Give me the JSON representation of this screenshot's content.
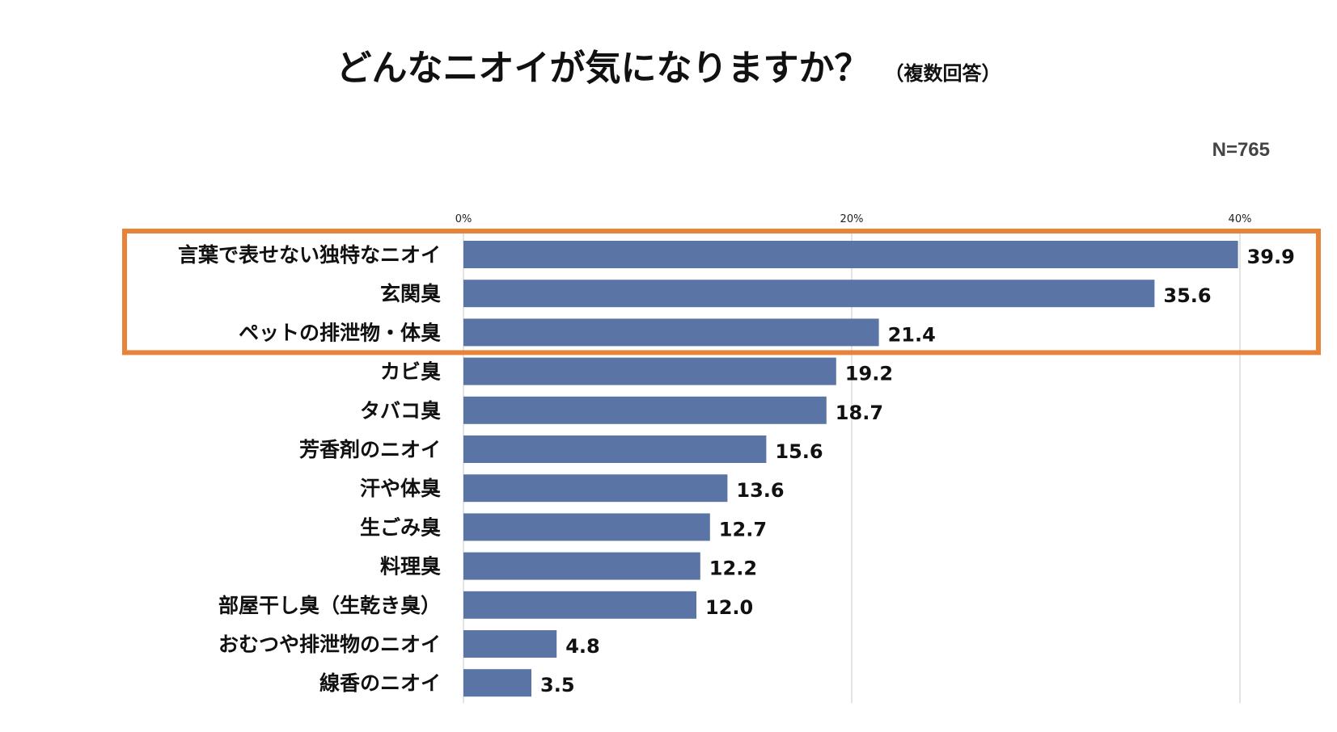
{
  "header": {
    "title": "どんなニオイが気になりますか？",
    "subtitle": "（複数回答）",
    "sample_size": "N=765"
  },
  "colors": {
    "bar": "#5b74a6",
    "highlight_border": "#e8843a",
    "grid": "#c8c8c8"
  },
  "chart_data": {
    "type": "bar",
    "orientation": "horizontal",
    "title": "どんなニオイが気になりますか？",
    "subtitle": "（複数回答）",
    "note": "N=765",
    "categories": [
      "言葉で表せない独特なニオイ",
      "玄関臭",
      "ペットの排泄物・体臭",
      "カビ臭",
      "タバコ臭",
      "芳香剤のニオイ",
      "汗や体臭",
      "生ごみ臭",
      "料理臭",
      "部屋干し臭（生乾き臭）",
      "おむつや排泄物のニオイ",
      "線香のニオイ"
    ],
    "values": [
      39.9,
      35.6,
      21.4,
      19.2,
      18.7,
      15.6,
      13.6,
      12.7,
      12.2,
      12.0,
      4.8,
      3.5
    ],
    "value_labels": [
      "39.9",
      "35.6",
      "21.4",
      "19.2",
      "18.7",
      "15.6",
      "13.6",
      "12.7",
      "12.2",
      "12.0",
      "4.8",
      "3.5"
    ],
    "x_ticks": [
      0,
      20,
      40
    ],
    "x_tick_labels": [
      "0%",
      "20%",
      "40%"
    ],
    "xlim": [
      0,
      40
    ],
    "xlabel": "",
    "ylabel": "",
    "grid": true,
    "highlighted_categories": [
      0,
      1,
      2
    ]
  }
}
